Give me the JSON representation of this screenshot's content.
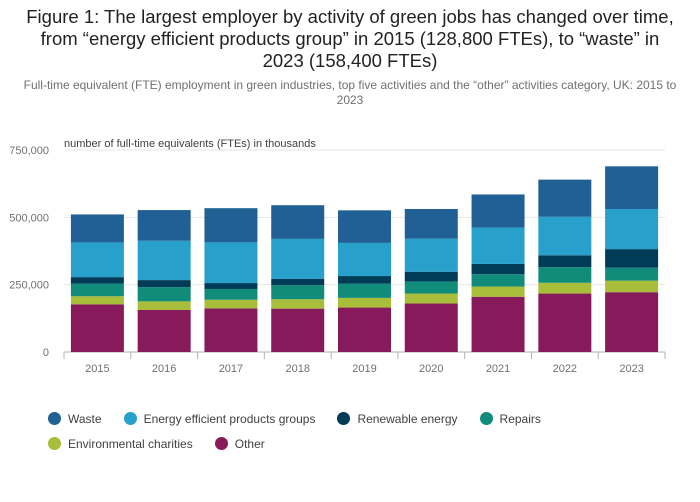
{
  "header": {
    "title": "Figure 1: The largest employer by activity of green jobs has changed over time, from “energy efficient products group” in 2015 (128,800 FTEs), to “waste” in 2023 (158,400 FTEs)",
    "subtitle": "Full-time equivalent (FTE) employment in green industries, top five activities and the “other” activities category, UK: 2015 to 2023"
  },
  "chart_data": {
    "type": "bar",
    "stacked": true,
    "categories": [
      "2015",
      "2016",
      "2017",
      "2018",
      "2019",
      "2020",
      "2021",
      "2022",
      "2023"
    ],
    "ylabel": "number of full-time equivalents (FTEs) in thousands",
    "ylim": [
      0,
      750000
    ],
    "yticks": [
      0,
      250000,
      500000,
      750000
    ],
    "ytick_labels": [
      "0",
      "250,000",
      "500,000",
      "750,000"
    ],
    "grid": true,
    "legend_position": "bottom",
    "series": [
      {
        "name": "Other",
        "color": "#871a5b",
        "values": [
          177000,
          156000,
          162000,
          161000,
          165000,
          180000,
          205000,
          217000,
          222000
        ]
      },
      {
        "name": "Environmental charities",
        "color": "#a8bd3a",
        "values": [
          30000,
          32000,
          32000,
          35000,
          36000,
          37000,
          38000,
          40000,
          43000
        ]
      },
      {
        "name": "Repairs",
        "color": "#118c7b",
        "values": [
          47000,
          53000,
          40000,
          52000,
          53000,
          45000,
          46000,
          58000,
          48000
        ]
      },
      {
        "name": "Renewable energy",
        "color": "#003c57",
        "values": [
          24000,
          26000,
          22000,
          24000,
          28000,
          36000,
          38000,
          44000,
          69000
        ]
      },
      {
        "name": "Energy efficient products groups",
        "color": "#27a0cc",
        "values": [
          128800,
          146000,
          151000,
          148000,
          123000,
          123000,
          135000,
          143000,
          149000
        ]
      },
      {
        "name": "Waste",
        "color": "#206095",
        "values": [
          104000,
          114000,
          127000,
          125000,
          121000,
          110000,
          123000,
          138000,
          158400
        ]
      }
    ]
  },
  "legend": {
    "rows": [
      [
        {
          "label": "Waste",
          "color": "#206095"
        },
        {
          "label": "Energy efficient products groups",
          "color": "#27a0cc"
        },
        {
          "label": "Renewable energy",
          "color": "#003c57"
        },
        {
          "label": "Repairs",
          "color": "#118c7b"
        }
      ],
      [
        {
          "label": "Environmental charities",
          "color": "#a8bd3a"
        },
        {
          "label": "Other",
          "color": "#871a5b"
        }
      ]
    ]
  }
}
